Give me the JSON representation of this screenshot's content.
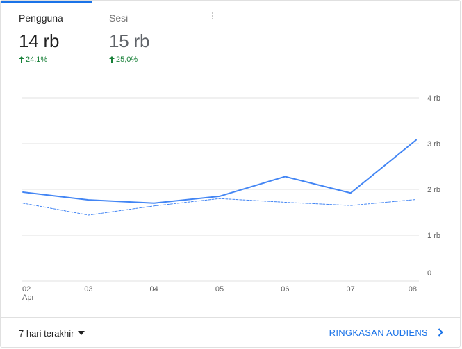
{
  "metrics": [
    {
      "label": "Pengguna",
      "value": "14 rb",
      "change": "24,1%"
    },
    {
      "label": "Sesi",
      "value": "15 rb",
      "change": "25,0%"
    }
  ],
  "colors": {
    "accent": "#1a73e8",
    "line": "#4285f4",
    "positive": "#188038",
    "grid": "#e0e0e0",
    "axis_text": "#616161"
  },
  "footer": {
    "date_range": "7 hari terakhir",
    "report_link": "RINGKASAN AUDIENS"
  },
  "icons": {
    "change_arrow": "arrow-up-icon",
    "date_dropdown": "dropdown-caret-icon",
    "report": "chevron-right-icon",
    "menu": "more-vert-icon"
  },
  "chart_data": {
    "type": "line",
    "x_tick_labels": [
      "02",
      "03",
      "04",
      "05",
      "06",
      "07",
      "08"
    ],
    "x_sub_labels": [
      "Apr",
      "",
      "",
      "",
      "",
      "",
      ""
    ],
    "y_tick_labels": [
      "0",
      "1 rb",
      "2 rb",
      "3 rb",
      "4 rb"
    ],
    "y_tick_values": [
      0,
      1000,
      2000,
      3000,
      4000
    ],
    "ylim": [
      0,
      4000
    ],
    "grid": true,
    "series": [
      {
        "style": "solid",
        "values": [
          1940,
          1770,
          1700,
          1850,
          2280,
          1920,
          3080
        ]
      },
      {
        "style": "dashed",
        "values": [
          1700,
          1440,
          1640,
          1800,
          1720,
          1650,
          1780
        ]
      }
    ]
  }
}
